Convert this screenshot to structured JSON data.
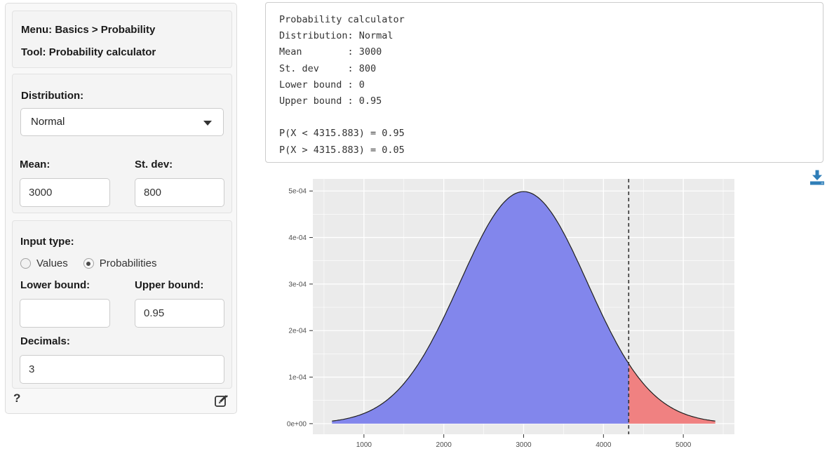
{
  "sidebar": {
    "header": {
      "menu_label": "Menu: Basics > Probability",
      "tool_label": "Tool: Probability calculator"
    },
    "distribution": {
      "label": "Distribution:",
      "selected": "Normal"
    },
    "mean": {
      "label": "Mean:",
      "value": "3000"
    },
    "stdev": {
      "label": "St. dev:",
      "value": "800"
    },
    "input_type": {
      "label": "Input type:",
      "options": [
        {
          "label": "Values",
          "selected": false
        },
        {
          "label": "Probabilities",
          "selected": true
        }
      ]
    },
    "lower_bound": {
      "label": "Lower bound:",
      "value": ""
    },
    "upper_bound": {
      "label": "Upper bound:",
      "value": "0.95"
    },
    "decimals": {
      "label": "Decimals:",
      "value": "3"
    },
    "help_label": "?"
  },
  "output": {
    "lines": [
      "Probability calculator",
      "Distribution: Normal",
      "Mean        : 3000",
      "St. dev     : 800",
      "Lower bound : 0",
      "Upper bound : 0.95",
      "",
      "P(X < 4315.883) = 0.95",
      "P(X > 4315.883) = 0.05"
    ]
  },
  "ui_colors": {
    "accent_blue": "#2f7eb8"
  },
  "chart_data": {
    "type": "area",
    "title": "",
    "distribution": "normal",
    "mean": 3000,
    "stdev": 800,
    "cutoff_value": 4315.883,
    "p_below_cutoff": 0.95,
    "p_above_cutoff": 0.05,
    "curve_x_range": [
      600,
      5400
    ],
    "xlim": [
      360,
      5640
    ],
    "ylim": [
      -2.28e-05,
      0.000526
    ],
    "x_ticks": [
      1000,
      2000,
      3000,
      4000,
      5000
    ],
    "x_minor_ticks": [
      500,
      1500,
      2500,
      3500,
      4500,
      5500
    ],
    "y_ticks": [
      0,
      0.0001,
      0.0002,
      0.0003,
      0.0004,
      0.0005
    ],
    "y_tick_labels": [
      "0e+00",
      "1e-04",
      "2e-04",
      "3e-04",
      "4e-04",
      "5e-04"
    ],
    "y_minor_ticks": [
      5e-05,
      0.00015,
      0.00025,
      0.00035,
      0.00045
    ],
    "grid": true,
    "legend": "none",
    "xlabel": "",
    "ylabel": "",
    "colors": {
      "fill_lower": "#8286ec",
      "fill_upper": "#f08181",
      "curve_line": "#1f1f1f",
      "cutoff_line": "#333333",
      "panel_bg": "#ebebeb",
      "gridline": "#ffffff",
      "axis_text": "#4d4d4d",
      "tick_mark": "#333333"
    }
  }
}
